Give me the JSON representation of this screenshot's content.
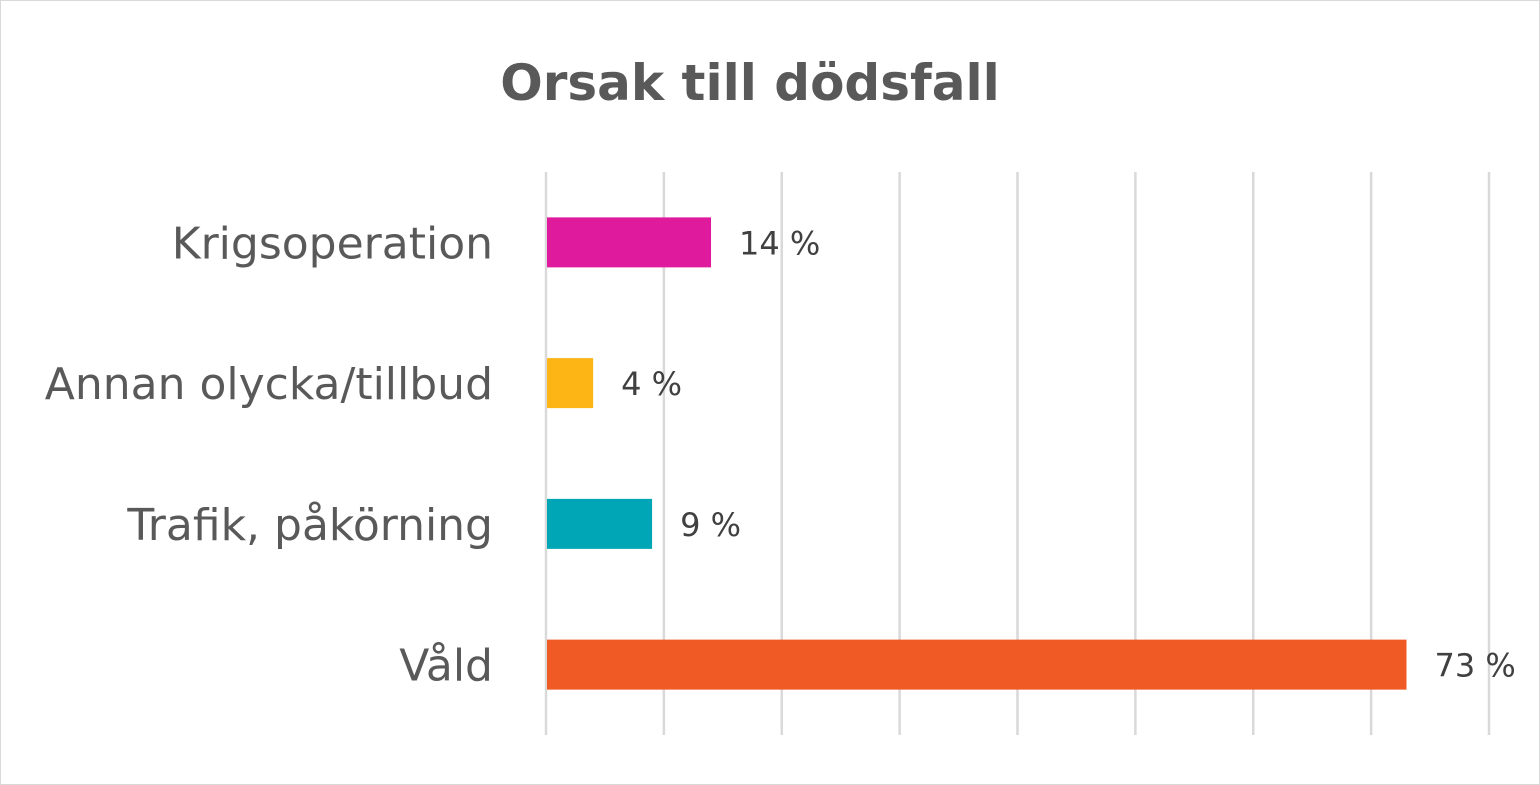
{
  "chart_data": {
    "type": "bar",
    "orientation": "horizontal",
    "title": "Orsak till dödsfall",
    "categories": [
      "Krigsoperation",
      "Annan olycka/tillbud",
      "Trafik, påkörning",
      "Våld"
    ],
    "values": [
      14,
      4,
      9,
      73
    ],
    "labels": [
      "14 %",
      "4 %",
      "9 %",
      "73 %"
    ],
    "colors": [
      "#DF1A9C",
      "#FDB515",
      "#00A6B6",
      "#F05A24"
    ],
    "xlim": [
      0,
      80
    ],
    "xtick_step": 10,
    "grid": true,
    "xlabel": "",
    "ylabel": ""
  }
}
